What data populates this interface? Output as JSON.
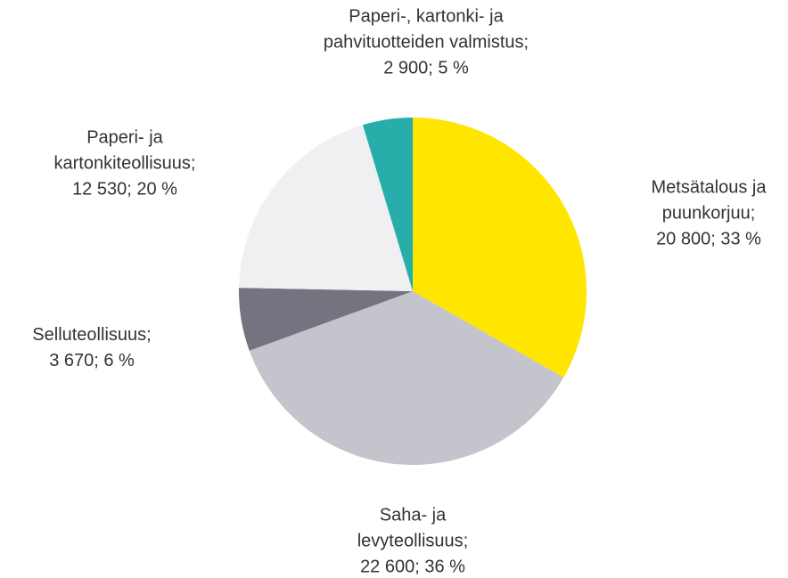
{
  "chart_data": {
    "type": "pie",
    "categories": [
      "Metsätalous ja puunkorjuu;",
      "Saha- ja levyteollisuus;",
      "Selluteollisuus;",
      "Paperi- ja kartonkiteollisuus;",
      "Paperi-, kartonki- ja pahvituotteiden valmistus;"
    ],
    "values": [
      20800,
      22600,
      3670,
      12530,
      2900
    ],
    "value_labels": [
      "20 800; 33 %",
      "22 600; 36 %",
      "3 670; 6 %",
      "12 530; 20 %",
      "2 900; 5 %"
    ],
    "colors": [
      "#ffe600",
      "#c4c4cd",
      "#747480",
      "#f0f0f2",
      "#27aeaa"
    ]
  }
}
